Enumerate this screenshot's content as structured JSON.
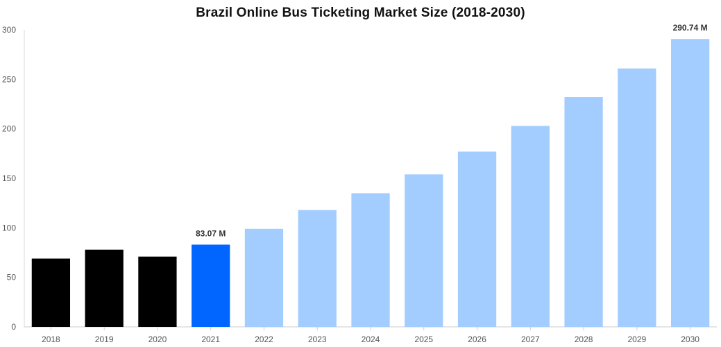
{
  "chart_data": {
    "type": "bar",
    "title": "Brazil Online Bus Ticketing Market Size (2018-2030)",
    "xlabel": "",
    "ylabel": "",
    "categories": [
      "2018",
      "2019",
      "2020",
      "2021",
      "2022",
      "2023",
      "2024",
      "2025",
      "2026",
      "2027",
      "2028",
      "2029",
      "2030"
    ],
    "values": [
      69,
      78,
      71,
      83.07,
      99,
      118,
      135,
      154,
      177,
      203,
      232,
      261,
      290.74
    ],
    "bar_colors": [
      "#000000",
      "#000000",
      "#000000",
      "#0066ff",
      "#a3cdff",
      "#a3cdff",
      "#a3cdff",
      "#a3cdff",
      "#a3cdff",
      "#a3cdff",
      "#a3cdff",
      "#a3cdff",
      "#a3cdff"
    ],
    "data_labels": [
      {
        "category": "2021",
        "text": "83.07 M"
      },
      {
        "category": "2030",
        "text": "290.74 M"
      }
    ],
    "ylim": [
      0,
      300
    ],
    "yticks": [
      0,
      50,
      100,
      150,
      200,
      250,
      300
    ],
    "grid": false,
    "legend": "none"
  }
}
